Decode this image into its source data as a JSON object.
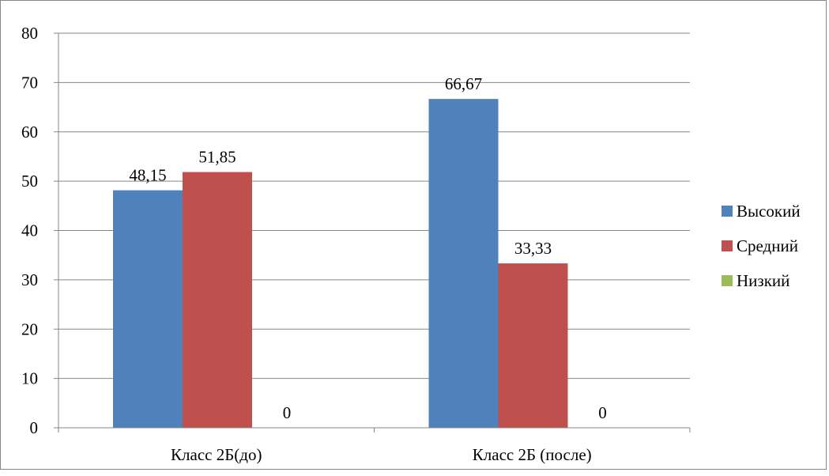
{
  "chart_data": {
    "type": "bar",
    "categories": [
      "Класс 2Б(до)",
      "Класс 2Б (после)"
    ],
    "series": [
      {
        "name": "Высокий",
        "values": [
          48.15,
          66.67
        ],
        "labels": [
          "48,15",
          "66,67"
        ],
        "color": "#4F81BD"
      },
      {
        "name": "Средний",
        "values": [
          51.85,
          33.33
        ],
        "labels": [
          "51,85",
          "33,33"
        ],
        "color": "#C0504D"
      },
      {
        "name": "Низкий",
        "values": [
          0,
          0
        ],
        "labels": [
          "0",
          "0"
        ],
        "color": "#9BBB59"
      }
    ],
    "yticks": [
      "0",
      "10",
      "20",
      "30",
      "40",
      "50",
      "60",
      "70",
      "80"
    ],
    "ylim": [
      0,
      80
    ],
    "grid": true,
    "legend_position": "right"
  }
}
